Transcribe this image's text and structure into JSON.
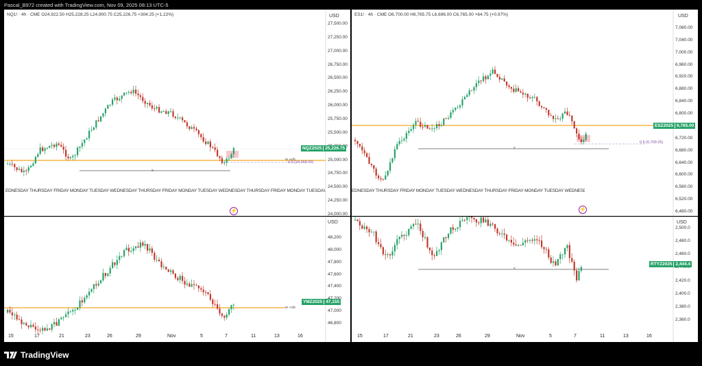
{
  "topbar": {
    "text": "Pascal_B972 created with TradingView.com, Nov 09, 2025 08:13 UTC-5"
  },
  "footer": {
    "brand": "TradingView"
  },
  "colors": {
    "up": "#26a269",
    "down": "#c0392b",
    "level": "#f5a623",
    "tag": "#26a269",
    "box": "#f7c6cc"
  },
  "panels": {
    "nq": {
      "header": "NQ1! · 4h · CME  O24,922.50  H25,228.25  L24,900.75  C25,226.75  +304.25 (+1.22%)",
      "currency": "USD",
      "ticks": [
        "27,500.00",
        "27,250.00",
        "27,000.00",
        "26,750.00",
        "26,500.00",
        "26,250.00",
        "26,000.00",
        "25,750.00",
        "25,500.00",
        "25,250.00",
        "25,000.00",
        "24,750.00",
        "24,500.00",
        "24,250.00",
        "24,000.00"
      ],
      "price_tag_symbol": "NQZ2025",
      "price_tag_value": "25,226.75",
      "note_ob": "w +ob",
      "note_fib": "0.5 (24,968.00)",
      "note_x": "x",
      "days": "EDNESDAY THURSDAY FRIDAY MONDAY TUESDAY WEDNESDAY THURSDAY FRIDAY MONDAY TUESDAY WEDNESDAY THURSDAY FRIDAY MONDAY TUESDAY WEDNESDAY THURSDAY FRIDAY",
      "bolt": "⚡"
    },
    "es": {
      "header": "ES1! · 4h · CME  O6,700.00  H6,765.75  L6,696.00  C6,765.00  +64.75 (+0.97%)",
      "currency": "USD",
      "ticks": [
        "7,080.00",
        "7,040.00",
        "7,000.00",
        "6,960.00",
        "6,920.00",
        "6,880.00",
        "6,840.00",
        "6,800.00",
        "6,760.00",
        "6,720.00",
        "6,680.00",
        "6,640.00",
        "6,600.00",
        "6,560.00",
        "6,520.00",
        "6,480.00"
      ],
      "price_tag_symbol": "ESZ2025",
      "price_tag_value": "6,765.00",
      "note_fib": "0.5 (6,709.25)",
      "note_x": "x",
      "days": "EDNESDAY THURSDAY FRIDAY MONDAY TUESDAY WEDNESDAY THURSDAY FRIDAY MONDAY TUESDAY WEDNESDAY THURSDAY FRIDAY",
      "bolt": "⚡"
    },
    "ym": {
      "currency": "USD",
      "ticks": [
        "48,200",
        "48,000",
        "47,800",
        "47,600",
        "47,400",
        "47,200",
        "47,000",
        "46,800"
      ],
      "price_tag_symbol": "YMZ2025",
      "price_tag_value": "47,155",
      "note_ob": "w +ob",
      "xaxis": [
        "15",
        "17",
        "21",
        "23",
        "26",
        "29",
        "Nov",
        "5",
        "7",
        "11",
        "13",
        "16"
      ]
    },
    "rty": {
      "currency": "USD",
      "ticks": [
        "2,500.0",
        "2,480.0",
        "2,460.0",
        "2,440.0",
        "2,420.0",
        "2,400.0",
        "2,380.0",
        "2,360.0"
      ],
      "price_tag_symbol": "RTYZ2025",
      "price_tag_value": "2,444.4",
      "note_x": "x",
      "xaxis": [
        "15",
        "17",
        "21",
        "23",
        "26",
        "29",
        "Nov",
        "5",
        "7",
        "11",
        "13",
        "16"
      ]
    }
  }
}
